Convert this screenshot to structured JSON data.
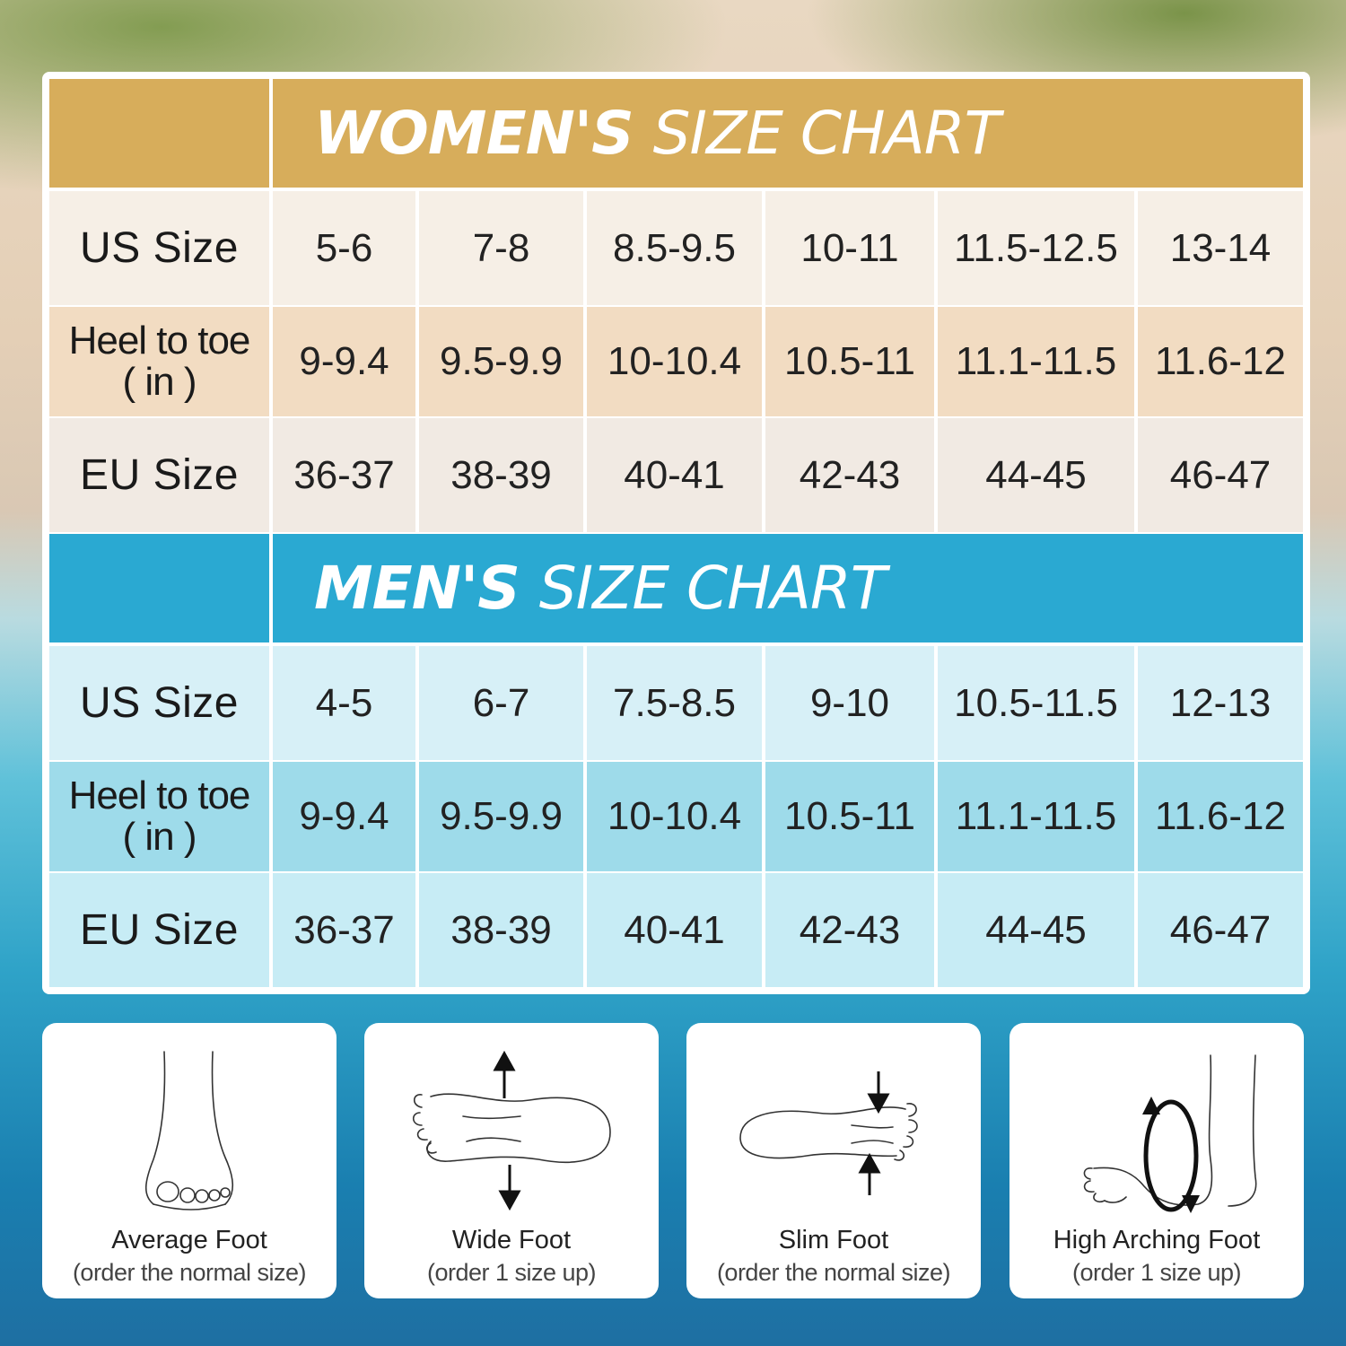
{
  "women": {
    "title_bold": "WOMEN'S",
    "title_light": "SIZE CHART",
    "rows": [
      {
        "label": "US Size",
        "values": [
          "5-6",
          "7-8",
          "8.5-9.5",
          "10-11",
          "11.5-12.5",
          "13-14"
        ]
      },
      {
        "label": "Heel to toe",
        "label2": "( in )",
        "values": [
          "9-9.4",
          "9.5-9.9",
          "10-10.4",
          "10.5-11",
          "11.1-11.5",
          "11.6-12"
        ]
      },
      {
        "label": "EU Size",
        "values": [
          "36-37",
          "38-39",
          "40-41",
          "42-43",
          "44-45",
          "46-47"
        ]
      }
    ]
  },
  "men": {
    "title_bold": "MEN'S",
    "title_light": "SIZE CHART",
    "rows": [
      {
        "label": "US Size",
        "values": [
          "4-5",
          "6-7",
          "7.5-8.5",
          "9-10",
          "10.5-11.5",
          "12-13"
        ]
      },
      {
        "label": "Heel to toe",
        "label2": "( in )",
        "values": [
          "9-9.4",
          "9.5-9.9",
          "10-10.4",
          "10.5-11",
          "11.1-11.5",
          "11.6-12"
        ]
      },
      {
        "label": "EU Size",
        "values": [
          "36-37",
          "38-39",
          "40-41",
          "42-43",
          "44-45",
          "46-47"
        ]
      }
    ]
  },
  "foot_types": [
    {
      "icon": "average-foot-icon",
      "title": "Average Foot",
      "note": "(order the normal size)"
    },
    {
      "icon": "wide-foot-icon",
      "title": "Wide Foot",
      "note": "(order 1 size up)"
    },
    {
      "icon": "slim-foot-icon",
      "title": "Slim Foot",
      "note": "(order the normal size)"
    },
    {
      "icon": "high-arch-foot-icon",
      "title": "High Arching Foot",
      "note": "(order 1 size up)"
    }
  ],
  "colors": {
    "women_header": "#d7ad5b",
    "men_header": "#2aa9d2"
  }
}
